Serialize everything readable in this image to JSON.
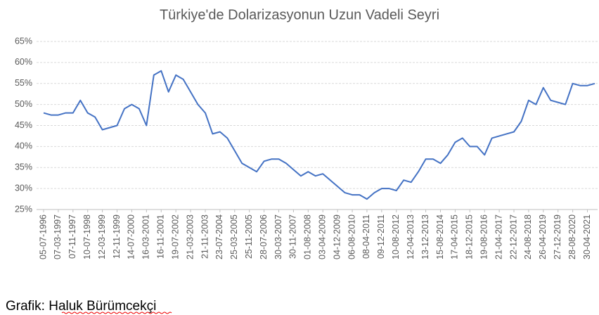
{
  "chart_data": {
    "type": "line",
    "title": "Türkiye'de Dolarizasyonun Uzun Vadeli Seyri",
    "source": "Grafik: Haluk Bürümcekçi",
    "categories": [
      "05-07-1996",
      null,
      "07-03-1997",
      null,
      "07-11-1997",
      null,
      "10-07-1998",
      null,
      "12-03-1999",
      null,
      "12-11-1999",
      null,
      "14-07-2000",
      null,
      "16-03-2001",
      null,
      "16-11-2001",
      null,
      "19-07-2002",
      null,
      "21-03-2003",
      null,
      "21-11-2003",
      null,
      "23-07-2004",
      null,
      "25-03-2005",
      null,
      "25-11-2005",
      null,
      "28-07-2006",
      null,
      "30-03-2007",
      null,
      "30-11-2007",
      null,
      "01-08-2008",
      null,
      "03-04-2009",
      null,
      "04-12-2009",
      null,
      "06-08-2010",
      null,
      "08-04-2011",
      null,
      "09-12-2011",
      null,
      "10-08-2012",
      null,
      "12-04-2013",
      null,
      "13-12-2013",
      null,
      "15-08-2014",
      null,
      "17-04-2015",
      null,
      "18-12-2015",
      null,
      "19-08-2016",
      null,
      "21-04-2017",
      null,
      "22-12-2017",
      null,
      "24-08-2018",
      null,
      "26-04-2019",
      null,
      "27-12-2019",
      null,
      "28-08-2020",
      null,
      "30-04-2021",
      null
    ],
    "series": [
      {
        "color": "#4472c4",
        "values": [
          48,
          47.5,
          47.5,
          48,
          48,
          51,
          48,
          47,
          44,
          44.5,
          45,
          49,
          50,
          49,
          45,
          57,
          58,
          53,
          57,
          56,
          53,
          50,
          48,
          43,
          43.5,
          42,
          39,
          36,
          35,
          34,
          36.5,
          37,
          37,
          36,
          34.5,
          33,
          34,
          33,
          33.5,
          32,
          30.5,
          29,
          28.5,
          28.5,
          27.5,
          29,
          30,
          30,
          29.5,
          32,
          31.5,
          34,
          37,
          37,
          36,
          38,
          41,
          42,
          40,
          40,
          38,
          42,
          42.5,
          43,
          43.5,
          46,
          51,
          50,
          54,
          51,
          50.5,
          50,
          55,
          54.5,
          54.5,
          55
        ]
      }
    ],
    "ylim": [
      25,
      65
    ],
    "yticks": [
      {
        "value": 25,
        "label": "25%"
      },
      {
        "value": 30,
        "label": "30%"
      },
      {
        "value": 35,
        "label": "35%"
      },
      {
        "value": 40,
        "label": "40%"
      },
      {
        "value": 45,
        "label": "45%"
      },
      {
        "value": 50,
        "label": "50%"
      },
      {
        "value": 55,
        "label": "55%"
      },
      {
        "value": 60,
        "label": "60%"
      },
      {
        "value": 65,
        "label": "65%"
      }
    ],
    "grid": true
  }
}
